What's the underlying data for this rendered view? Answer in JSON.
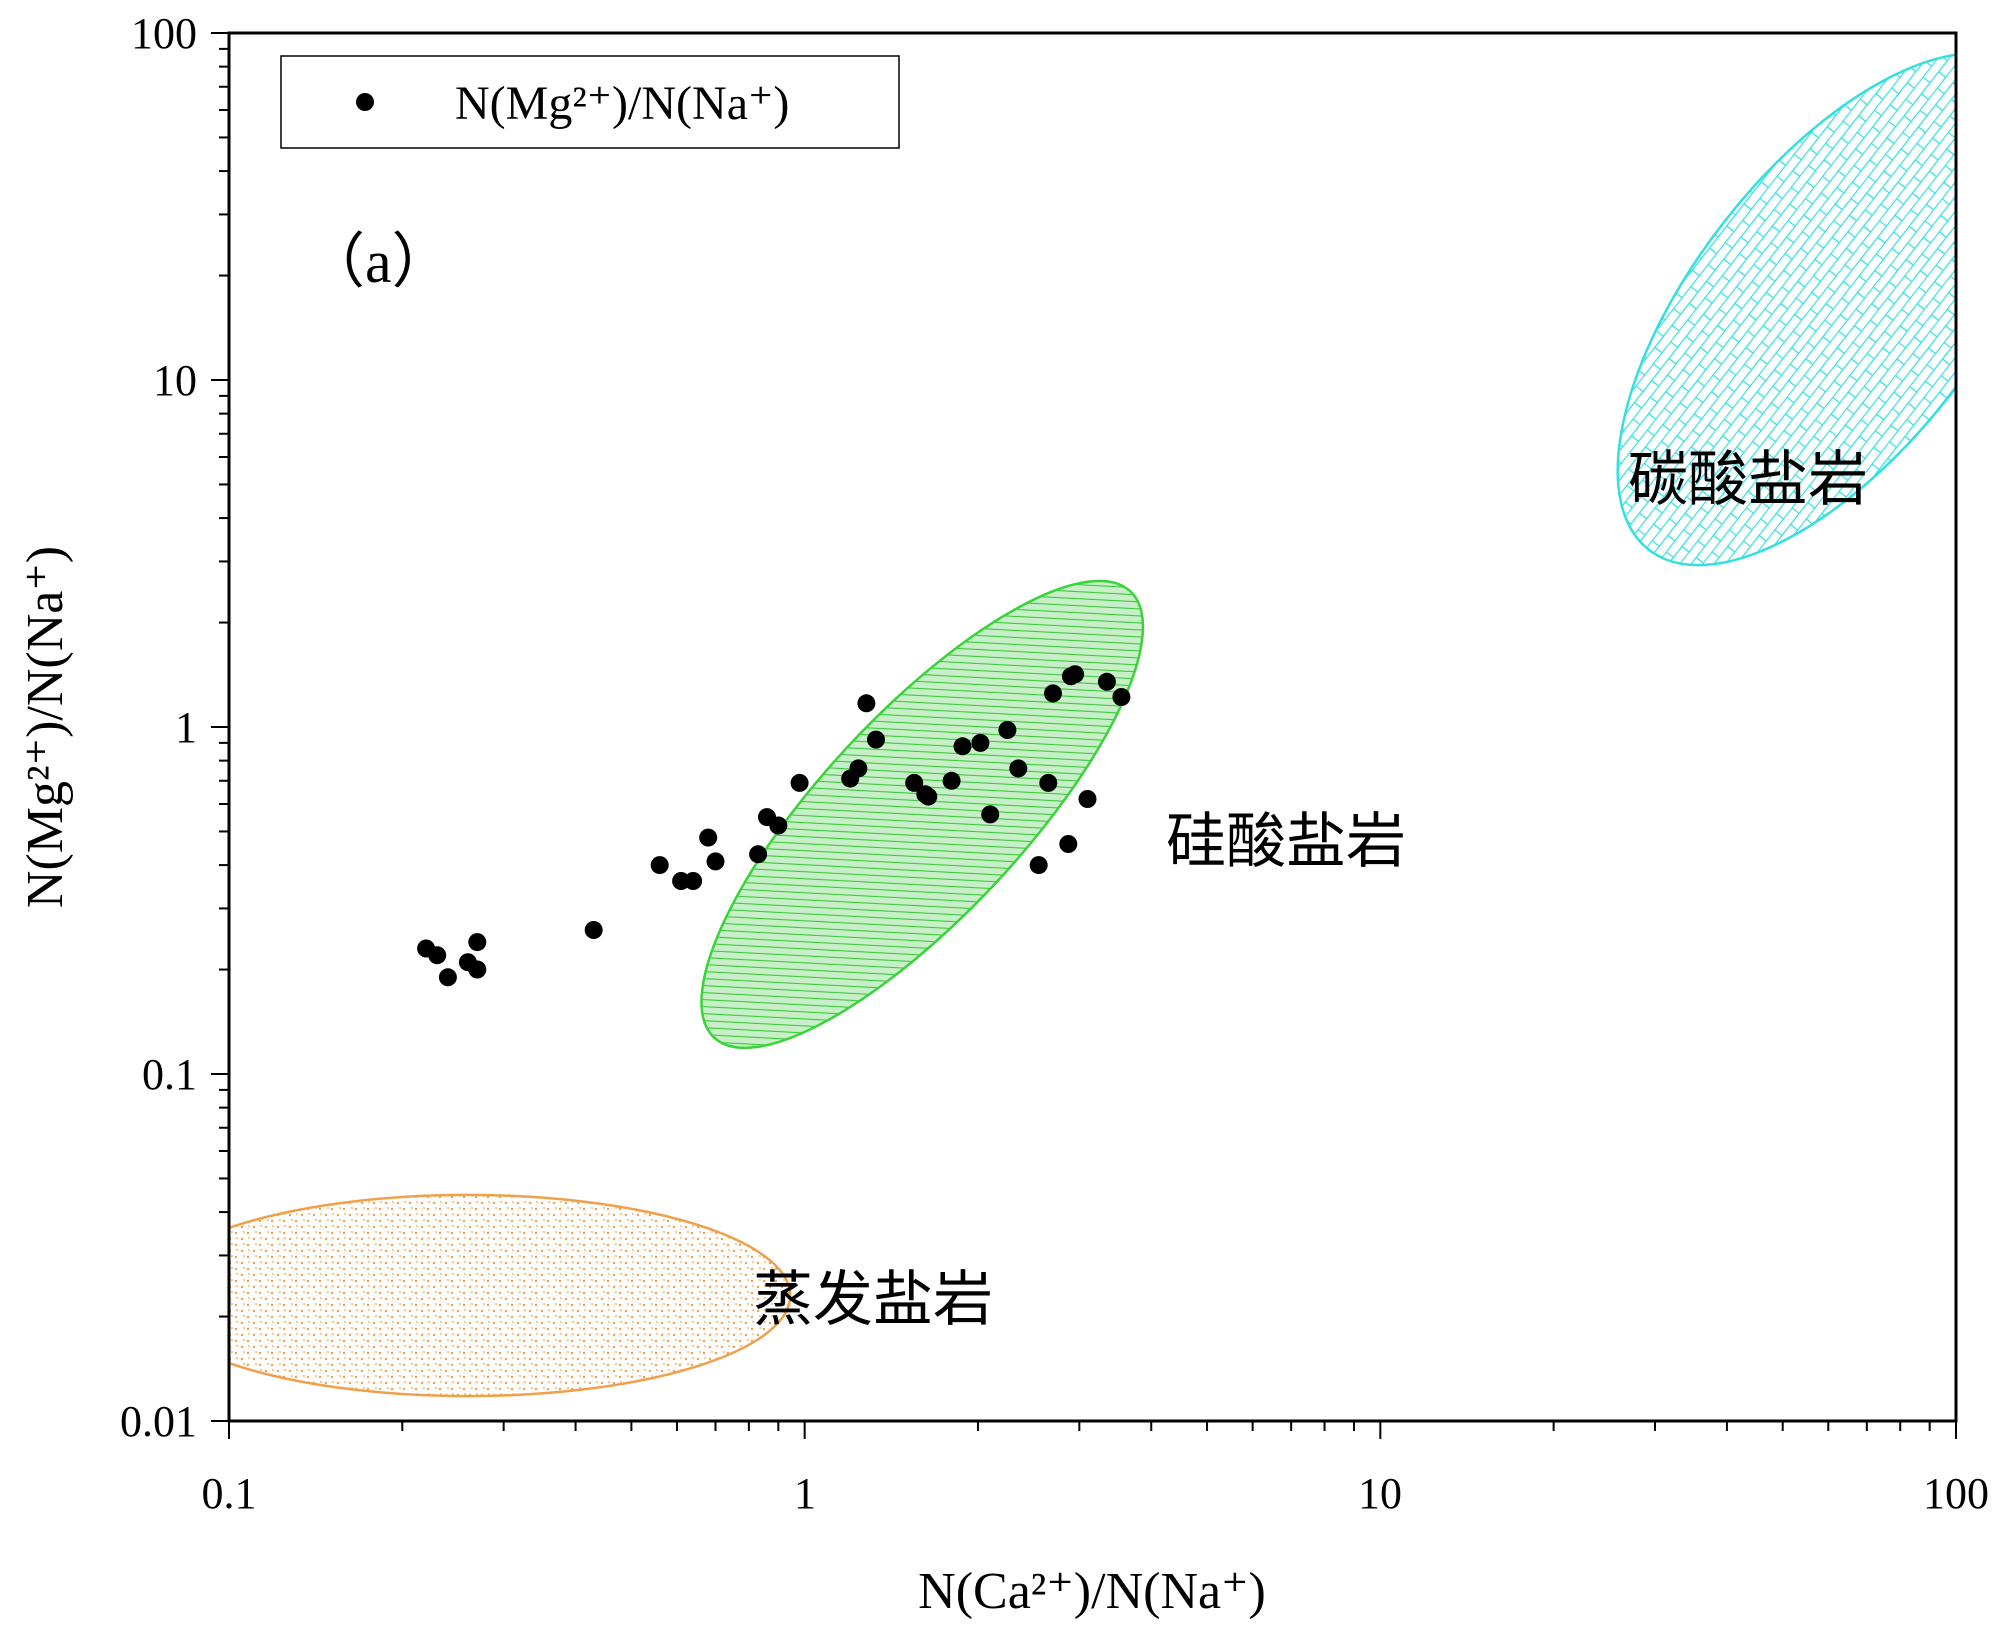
{
  "chart_data": {
    "type": "scatter",
    "xscale": "log",
    "yscale": "log",
    "xlim": [
      0.1,
      100
    ],
    "ylim": [
      0.01,
      100
    ],
    "xlabel": "N(Ca²⁺)/N(Na⁺)",
    "ylabel": "N(Mg²⁺)/N(Na⁺)",
    "x_ticks": [
      "0.1",
      "1",
      "10",
      "100"
    ],
    "y_ticks": [
      "0.01",
      "0.1",
      "1",
      "10",
      "100"
    ],
    "panel_label": "（a）",
    "legend": {
      "position": "top-left",
      "entries": [
        "N(Mg²⁺)/N(Na⁺)"
      ]
    },
    "series": [
      {
        "name": "N(Mg²⁺)/N(Na⁺)",
        "marker": "filled-circle",
        "color": "#000000",
        "points": [
          [
            0.22,
            0.23
          ],
          [
            0.23,
            0.22
          ],
          [
            0.24,
            0.19
          ],
          [
            0.26,
            0.21
          ],
          [
            0.27,
            0.2
          ],
          [
            0.27,
            0.24
          ],
          [
            0.43,
            0.26
          ],
          [
            0.56,
            0.4
          ],
          [
            0.61,
            0.36
          ],
          [
            0.64,
            0.36
          ],
          [
            0.68,
            0.48
          ],
          [
            0.7,
            0.41
          ],
          [
            0.83,
            0.43
          ],
          [
            0.86,
            0.55
          ],
          [
            0.9,
            0.52
          ],
          [
            0.98,
            0.69
          ],
          [
            1.2,
            0.71
          ],
          [
            1.24,
            0.76
          ],
          [
            1.28,
            1.17
          ],
          [
            1.33,
            0.92
          ],
          [
            1.55,
            0.69
          ],
          [
            1.62,
            0.64
          ],
          [
            1.64,
            0.63
          ],
          [
            1.8,
            0.7
          ],
          [
            1.88,
            0.88
          ],
          [
            2.02,
            0.9
          ],
          [
            2.1,
            0.56
          ],
          [
            2.25,
            0.98
          ],
          [
            2.35,
            0.76
          ],
          [
            2.55,
            0.4
          ],
          [
            2.65,
            0.69
          ],
          [
            2.7,
            1.25
          ],
          [
            2.87,
            0.46
          ],
          [
            2.9,
            1.4
          ],
          [
            2.95,
            1.42
          ],
          [
            3.1,
            0.62
          ],
          [
            3.35,
            1.35
          ],
          [
            3.55,
            1.22
          ]
        ]
      }
    ],
    "regions": [
      {
        "label": "碳酸盐岩",
        "fill": "brick",
        "color": "#33e0e0",
        "center": [
          62,
          16
        ],
        "log_radii": [
          0.53,
          0.41
        ],
        "angle_deg": -52
      },
      {
        "label": "硅酸盐岩",
        "fill": "hatch",
        "color": "#39d439",
        "center": [
          1.6,
          0.56
        ],
        "log_radii": [
          0.53,
          0.29
        ],
        "angle_deg": -47
      },
      {
        "label": "蒸发盐岩",
        "fill": "dots",
        "color": "#f0a04a",
        "center": [
          0.26,
          0.023
        ],
        "log_radii": [
          0.56,
          0.29
        ],
        "angle_deg": 0
      }
    ],
    "grid": false
  }
}
